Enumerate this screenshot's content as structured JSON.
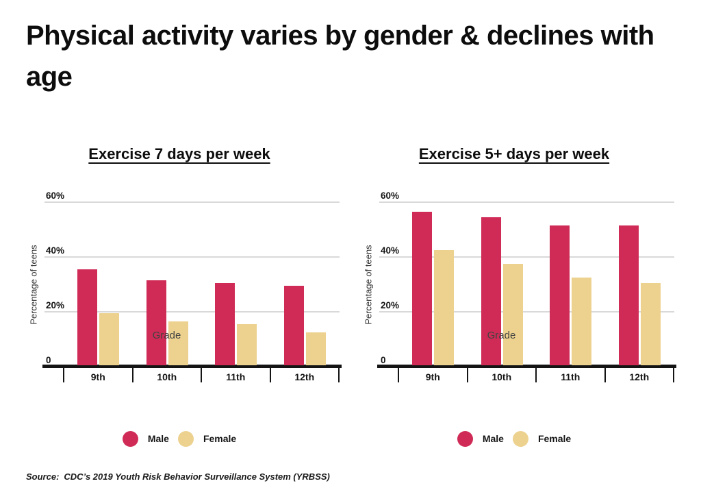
{
  "page": {
    "title": "Physical activity varies by gender & declines with age",
    "source_label": "Source:",
    "source_text": "CDC’s 2019 Youth Risk Behavior Surveillance System (YRBSS)"
  },
  "colors": {
    "male": "#d02b56",
    "female": "#edd28f",
    "gridline": "#d9d9d9",
    "axis": "#141414"
  },
  "chart_data": [
    {
      "type": "bar",
      "title": "Exercise 7 days per week",
      "categories": [
        "9th",
        "10th",
        "11th",
        "12th"
      ],
      "series": [
        {
          "name": "Male",
          "color": "#d02b56",
          "values": [
            35,
            31,
            30,
            29
          ]
        },
        {
          "name": "Female",
          "color": "#edd28f",
          "values": [
            19,
            16,
            15,
            12
          ]
        }
      ],
      "xlabel": "Grade",
      "ylabel": "Percentage of teens",
      "yticks": [
        "60%",
        "40%",
        "20%",
        "0"
      ],
      "ytick_values": [
        60,
        40,
        20,
        0
      ],
      "ylim": [
        0,
        60
      ],
      "grid": true,
      "legend_position": "bottom"
    },
    {
      "type": "bar",
      "title": "Exercise 5+ days per week",
      "categories": [
        "9th",
        "10th",
        "11th",
        "12th"
      ],
      "series": [
        {
          "name": "Male",
          "color": "#d02b56",
          "values": [
            56,
            54,
            51,
            51
          ]
        },
        {
          "name": "Female",
          "color": "#edd28f",
          "values": [
            42,
            37,
            32,
            30
          ]
        }
      ],
      "xlabel": "Grade",
      "ylabel": "Percentage of teens",
      "yticks": [
        "60%",
        "40%",
        "20%",
        "0"
      ],
      "ytick_values": [
        60,
        40,
        20,
        0
      ],
      "ylim": [
        0,
        60
      ],
      "grid": true,
      "legend_position": "bottom"
    }
  ]
}
